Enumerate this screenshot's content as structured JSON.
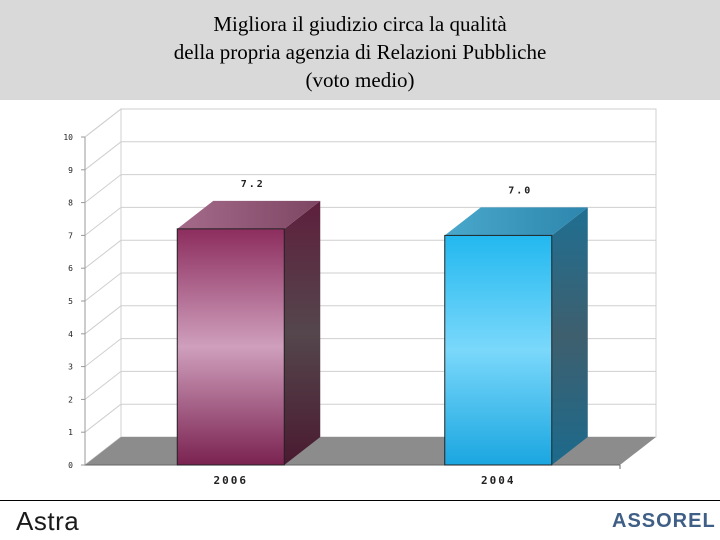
{
  "title_lines": [
    "Migliora il giudizio circa la qualità",
    "della propria agenzia di Relazioni Pubbliche",
    "(voto medio)"
  ],
  "footer": {
    "left_logo": "Astra",
    "right_logo": "ASSOREL"
  },
  "chart_data": {
    "type": "bar",
    "title": "Migliora il giudizio circa la qualità della propria agenzia di Relazioni Pubbliche (voto medio)",
    "categories": [
      "2006",
      "2004"
    ],
    "values": [
      7.2,
      7.0
    ],
    "value_labels": [
      "7.2",
      "7.0"
    ],
    "ylim": [
      0,
      10
    ],
    "yticks": [
      "0",
      "1",
      "2",
      "3",
      "4",
      "5",
      "6",
      "7",
      "8",
      "9",
      "10"
    ],
    "grid": true,
    "legend": "none",
    "style": "3d",
    "colors": [
      "#9b3a6e",
      "#2fc4f5"
    ]
  }
}
